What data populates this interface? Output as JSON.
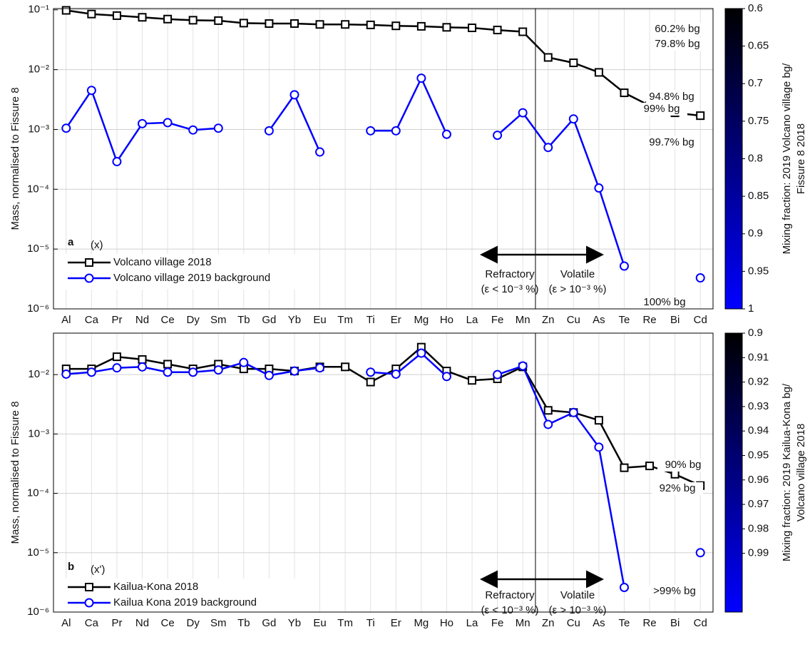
{
  "chart_data": [
    {
      "type": "line",
      "panel_label": "a",
      "panel_sub": "(x)",
      "y_label": "Mass, normalised to Fissure 8",
      "categories": [
        "Al",
        "Ca",
        "Pr",
        "Nd",
        "Ce",
        "Dy",
        "Sm",
        "Tb",
        "Gd",
        "Yb",
        "Eu",
        "Tm",
        "Ti",
        "Er",
        "Mg",
        "Ho",
        "La",
        "Fe",
        "Mn",
        "Zn",
        "Cu",
        "As",
        "Te",
        "Re",
        "Bi",
        "Cd"
      ],
      "series": [
        {
          "name": "Volcano village 2018",
          "color": "#000000",
          "marker": "square",
          "values": [
            0.098,
            0.085,
            0.08,
            0.075,
            0.07,
            0.067,
            0.066,
            0.06,
            0.059,
            0.059,
            0.057,
            0.057,
            0.056,
            0.054,
            0.053,
            0.051,
            0.05,
            0.046,
            0.043,
            0.016,
            0.013,
            0.009,
            0.0041,
            0.0025,
            0.0019,
            0.0017
          ]
        },
        {
          "name": "Volcano village 2019 background",
          "color": "#0000ff",
          "marker": "circle",
          "values": [
            0.00105,
            0.0045,
            0.00029,
            0.00125,
            0.0013,
            0.00098,
            0.00105,
            null,
            0.00095,
            0.0038,
            0.00042,
            null,
            0.00095,
            0.00095,
            0.0072,
            0.00083,
            null,
            0.0008,
            0.0019,
            0.0005,
            0.0015,
            0.000105,
            5.2e-06,
            null,
            null,
            3.3e-06
          ]
        }
      ],
      "ylog": true,
      "grid": true,
      "ylim": [
        1e-06,
        0.105
      ],
      "yticks": [
        {
          "value": 1e-06,
          "label": "10⁻⁶"
        },
        {
          "value": 1e-05,
          "label": "10⁻⁵"
        },
        {
          "value": 0.0001,
          "label": "10⁻⁴"
        },
        {
          "value": 0.001,
          "label": "10⁻³"
        },
        {
          "value": 0.01,
          "label": "10⁻²"
        },
        {
          "value": 0.1,
          "label": "10⁻¹"
        }
      ],
      "annotations": [
        "Refractory",
        "(ε < 10⁻³ %)",
        "Volatile",
        "(ε > 10⁻³ %)"
      ],
      "mixing_labels": [
        "60.2% bg",
        "79.8% bg",
        "94.8% bg",
        "99% bg",
        "99.7% bg",
        "100% bg"
      ],
      "colorbar": {
        "label": [
          "Mixing fraction: 2019 Volcano village bg/",
          "Fissure 8 2018"
        ],
        "lim": [
          0.6,
          1
        ],
        "colors": [
          "#000000",
          "#0000ff"
        ],
        "ticks": [
          0.6,
          0.65,
          0.7,
          0.75,
          0.8,
          0.85,
          0.9,
          0.95,
          1
        ]
      }
    },
    {
      "type": "line",
      "panel_label": "b",
      "panel_sub": "(x')",
      "y_label": "Mass, normalised to Fissure 8",
      "categories": [
        "Al",
        "Ca",
        "Pr",
        "Nd",
        "Ce",
        "Dy",
        "Sm",
        "Tb",
        "Gd",
        "Yb",
        "Eu",
        "Tm",
        "Ti",
        "Er",
        "Mg",
        "Ho",
        "La",
        "Fe",
        "Mn",
        "Zn",
        "Cu",
        "As",
        "Te",
        "Re",
        "Bi",
        "Cd"
      ],
      "series": [
        {
          "name": "Kailua-Kona 2018",
          "color": "#000000",
          "marker": "square",
          "values": [
            0.0125,
            0.0125,
            0.02,
            0.018,
            0.015,
            0.0125,
            0.015,
            0.0125,
            0.0125,
            0.0115,
            0.0135,
            0.0135,
            0.0075,
            0.0125,
            0.029,
            0.0115,
            0.008,
            0.0085,
            0.0135,
            0.0025,
            0.0023,
            0.0017,
            0.00027,
            0.00029,
            0.00021,
            0.000135
          ]
        },
        {
          "name": "Kailua Kona 2019 background",
          "color": "#0000ff",
          "marker": "circle",
          "values": [
            0.0102,
            0.011,
            0.013,
            0.0135,
            0.011,
            0.011,
            0.012,
            0.016,
            0.0097,
            0.0115,
            0.013,
            null,
            0.011,
            0.0102,
            0.023,
            0.0093,
            null,
            0.01,
            0.014,
            0.00145,
            0.0023,
            0.0006,
            2.6e-06,
            null,
            null,
            1e-05
          ]
        }
      ],
      "ylog": true,
      "grid": true,
      "ylim": [
        1e-06,
        0.05
      ],
      "yticks": [
        {
          "value": 1e-06,
          "label": "10⁻⁶"
        },
        {
          "value": 1e-05,
          "label": "10⁻⁵"
        },
        {
          "value": 0.0001,
          "label": "10⁻⁴"
        },
        {
          "value": 0.001,
          "label": "10⁻³"
        },
        {
          "value": 0.01,
          "label": "10⁻²"
        }
      ],
      "annotations": [
        "Refractory",
        "(ε < 10⁻³ %)",
        "Volatile",
        "(ε > 10⁻³ %)"
      ],
      "mixing_labels": [
        "90% bg",
        "92% bg",
        ">99% bg"
      ],
      "colorbar": {
        "label": [
          "Mixing fraction: 2019 Kailua-Kona bg/",
          "Volcano village 2018"
        ],
        "lim": [
          0.9,
          1.014
        ],
        "colors": [
          "#000000",
          "#0000ff"
        ],
        "ticks": [
          0.9,
          0.91,
          0.92,
          0.93,
          0.94,
          0.95,
          0.96,
          0.97,
          0.98,
          0.99
        ]
      }
    }
  ]
}
